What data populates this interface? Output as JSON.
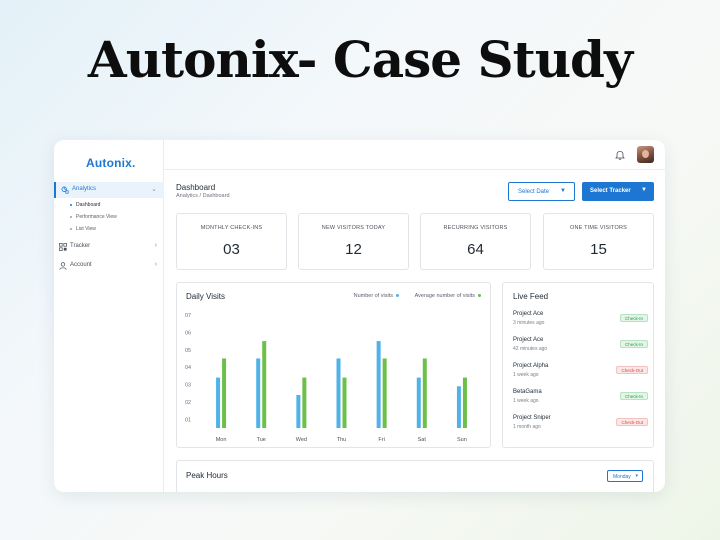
{
  "hero": {
    "title": "Autonix- Case Study"
  },
  "sidebar": {
    "logo": "Autonix.",
    "items": [
      {
        "label": "Analytics",
        "icon": "analytics-icon",
        "active": true
      },
      {
        "label": "Tracker",
        "icon": "tracker-icon"
      },
      {
        "label": "Account",
        "icon": "user-icon"
      }
    ],
    "sub_items": [
      {
        "label": "Dashboard",
        "active": true
      },
      {
        "label": "Performance View"
      },
      {
        "label": "List View"
      }
    ]
  },
  "header": {
    "title": "Dashboard",
    "breadcrumb": "Analytics / Dashboard",
    "select_date": "Select Date",
    "select_tracker": "Select Tracker"
  },
  "stats": [
    {
      "label": "MONTHLY CHECK-INS",
      "value": "03"
    },
    {
      "label": "NEW VISITORS TODAY",
      "value": "12"
    },
    {
      "label": "RECURRING VISITORS",
      "value": "64"
    },
    {
      "label": "ONE TIME VISITORS",
      "value": "15"
    }
  ],
  "daily_visits": {
    "title": "Daily Visits",
    "legend": {
      "visits": "Number of visits",
      "average": "Average number of visits"
    }
  },
  "live_feed": {
    "title": "Live Feed",
    "items": [
      {
        "project": "Project Ace",
        "time": "3 minutes ago",
        "status": "Check-In",
        "type": "in"
      },
      {
        "project": "Project Ace",
        "time": "42 minutes ago",
        "status": "Check-In",
        "type": "in"
      },
      {
        "project": "Project Alpha",
        "time": "1 week ago",
        "status": "Check-Out",
        "type": "out"
      },
      {
        "project": "BetaGama",
        "time": "1 week ago",
        "status": "Check-In",
        "type": "in"
      },
      {
        "project": "Project Sniper",
        "time": "1 month ago",
        "status": "Check-Out",
        "type": "out"
      }
    ]
  },
  "peak_hours": {
    "title": "Peak Hours",
    "selected": "Monday"
  },
  "colors": {
    "accent": "#1d77d2",
    "visits": "#4fb3e8",
    "average": "#6cc04a"
  },
  "chart_data": {
    "type": "bar",
    "categories": [
      "Mon",
      "Tue",
      "Wed",
      "Thu",
      "Fri",
      "Sat",
      "Sun"
    ],
    "y_ticks": [
      "01",
      "02",
      "03",
      "04",
      "05",
      "06",
      "07"
    ],
    "ylim": [
      0.5,
      7
    ],
    "series": [
      {
        "name": "Number of visits",
        "values": [
          3.4,
          4.5,
          2.4,
          4.5,
          5.5,
          3.4,
          2.9
        ]
      },
      {
        "name": "Average number of visits",
        "values": [
          4.5,
          5.5,
          3.4,
          3.4,
          4.5,
          4.5,
          3.4
        ]
      }
    ],
    "grid": false,
    "legend": "top-right"
  }
}
